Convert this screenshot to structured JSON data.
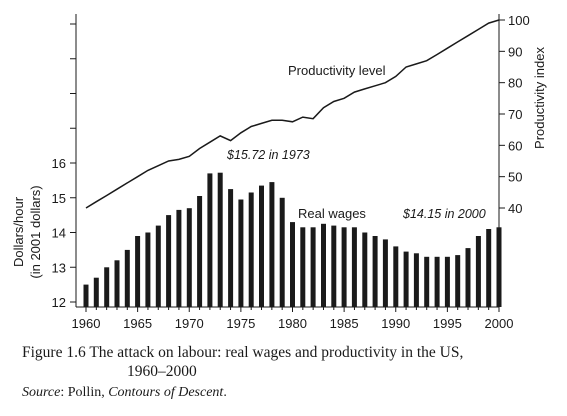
{
  "chart_data": {
    "type": "bar+line",
    "x": [
      1960,
      1961,
      1962,
      1963,
      1964,
      1965,
      1966,
      1967,
      1968,
      1969,
      1970,
      1971,
      1972,
      1973,
      1974,
      1975,
      1976,
      1977,
      1978,
      1979,
      1980,
      1981,
      1982,
      1983,
      1984,
      1985,
      1986,
      1987,
      1988,
      1989,
      1990,
      1991,
      1992,
      1993,
      1994,
      1995,
      1996,
      1997,
      1998,
      1999,
      2000
    ],
    "series": [
      {
        "name": "Real wages",
        "axis": "left",
        "type": "bar",
        "values": [
          12.5,
          12.7,
          13.0,
          13.2,
          13.5,
          13.9,
          14.0,
          14.2,
          14.5,
          14.65,
          14.7,
          15.05,
          15.7,
          15.72,
          15.25,
          14.95,
          15.15,
          15.35,
          15.45,
          15.0,
          14.3,
          14.15,
          14.15,
          14.25,
          14.2,
          14.15,
          14.15,
          14.0,
          13.9,
          13.8,
          13.6,
          13.45,
          13.4,
          13.3,
          13.3,
          13.3,
          13.35,
          13.55,
          13.9,
          14.1,
          14.15
        ]
      },
      {
        "name": "Productivity level",
        "axis": "right",
        "type": "line",
        "values": [
          40,
          42,
          44,
          46,
          48,
          50,
          52,
          53.5,
          55,
          55.5,
          56.5,
          59,
          61,
          63,
          61.5,
          64,
          66,
          67,
          68,
          68,
          67.5,
          69,
          68.5,
          72,
          74,
          75,
          77,
          78,
          79,
          80,
          82,
          85,
          86,
          87,
          89,
          91,
          93,
          95,
          97,
          99,
          100
        ]
      }
    ],
    "xlabel": "",
    "xticks": [
      "1960",
      "1965",
      "1970",
      "1975",
      "1980",
      "1985",
      "1990",
      "1995",
      "2000"
    ],
    "ylabel_left": [
      "Dollars/hour",
      "(in 2001 dollars)"
    ],
    "yticks_left": [
      "12",
      "13",
      "14",
      "15",
      "16"
    ],
    "ylim_left": [
      12,
      16
    ],
    "ylabel_right": "Productivity index",
    "yticks_right": [
      "40",
      "50",
      "60",
      "70",
      "80",
      "90",
      "100"
    ],
    "ylim_right": [
      40,
      100
    ],
    "annotations": {
      "productivity_label": "Productivity level",
      "wages_label": "Real wages",
      "peak_note": "$15.72 in 1973",
      "end_note": "$14.15 in 2000"
    },
    "colors": {
      "bars": "#1a1a1a",
      "line": "#1a1a1a"
    },
    "grid": false
  },
  "caption": {
    "figure_line1": "Figure 1.6  The attack on labour: real wages and productivity in the US,",
    "figure_line2": "1960–2000",
    "source_label": "Source",
    "source_text": ": Pollin, ",
    "source_title": "Contours of Descent",
    "source_end": "."
  }
}
